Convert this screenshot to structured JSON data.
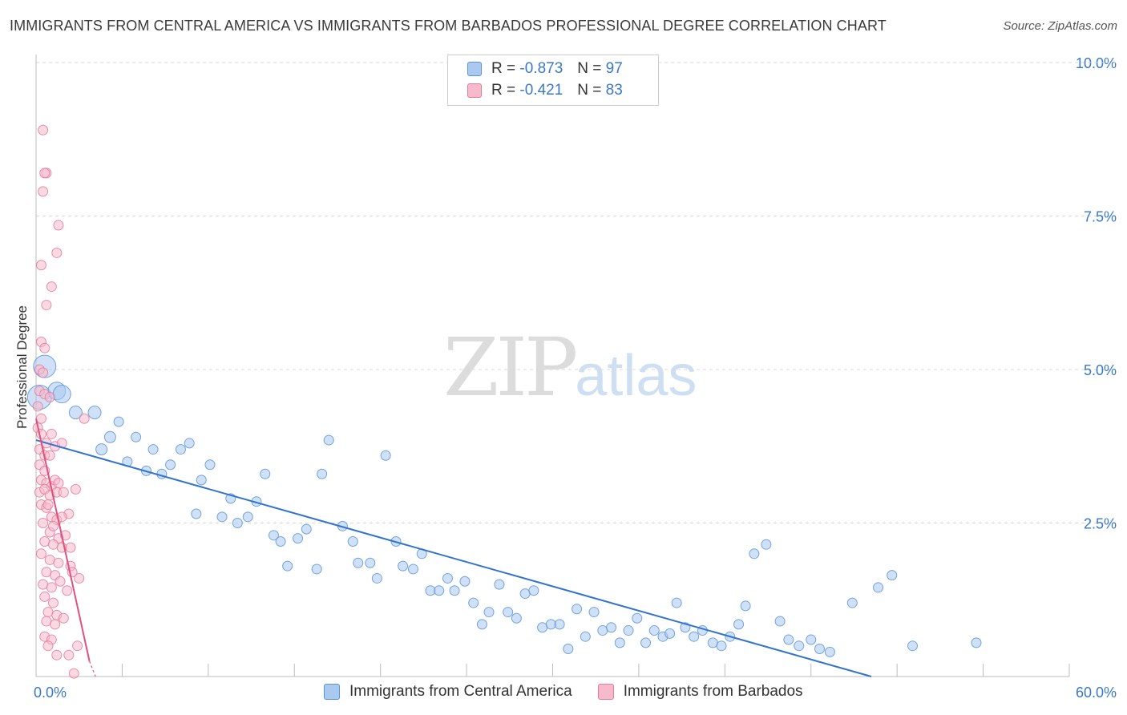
{
  "title": "IMMIGRANTS FROM CENTRAL AMERICA VS IMMIGRANTS FROM BARBADOS PROFESSIONAL DEGREE CORRELATION CHART",
  "source": "Source: ZipAtlas.com",
  "watermark": {
    "zip": "ZIP",
    "atlas": "atlas"
  },
  "colors": {
    "blue_fill": "#aac9f0",
    "blue_stroke": "#5b95d8",
    "blue_line": "#3173cf",
    "pink_fill": "#f7b9cc",
    "pink_stroke": "#e47a9c",
    "pink_line": "#e0507e",
    "tick_text": "#3a78c9",
    "grid": "#d9d9d9"
  },
  "legend": {
    "rows": [
      {
        "r_label": "R =",
        "r_value": "-0.873",
        "n_label": "N =",
        "n_value": "97"
      },
      {
        "r_label": "R =",
        "r_value": "-0.421",
        "n_label": "N =",
        "n_value": "83"
      }
    ]
  },
  "bottom_legend": [
    "Immigrants from Central America",
    "Immigrants from Barbados"
  ],
  "chart_data": {
    "type": "scatter",
    "title": "IMMIGRANTS FROM CENTRAL AMERICA VS IMMIGRANTS FROM BARBADOS PROFESSIONAL DEGREE CORRELATION CHART",
    "xlabel": "",
    "ylabel": "Professional Degree",
    "xlim": [
      0,
      60
    ],
    "ylim": [
      0,
      10
    ],
    "x_tick_labels": {
      "min": "0.0%",
      "max": "60.0%"
    },
    "y_ticks": [
      2.5,
      5.0,
      7.5,
      10.0
    ],
    "y_tick_labels": [
      "2.5%",
      "5.0%",
      "7.5%",
      "10.0%"
    ],
    "grid": true,
    "legend_position": "top-center",
    "series": [
      {
        "name": "Immigrants from Central America",
        "r": -0.873,
        "n": 97,
        "trend": {
          "x0": 0,
          "y0": 3.85,
          "x1": 48.5,
          "y1": 0.0
        },
        "points": [
          [
            0.2,
            4.55,
            1.5
          ],
          [
            0.5,
            5.05,
            1.4
          ],
          [
            1.2,
            4.65,
            1.1
          ],
          [
            1.5,
            4.6,
            1.1
          ],
          [
            2.3,
            4.3,
            0.8
          ],
          [
            3.4,
            4.3,
            0.8
          ],
          [
            3.8,
            3.7,
            0.7
          ],
          [
            4.3,
            3.9,
            0.7
          ],
          [
            4.8,
            4.15,
            0.6
          ],
          [
            5.3,
            3.5,
            0.6
          ],
          [
            5.8,
            3.9,
            0.6
          ],
          [
            6.4,
            3.35,
            0.6
          ],
          [
            6.8,
            3.7,
            0.6
          ],
          [
            7.3,
            3.3,
            0.6
          ],
          [
            7.8,
            3.45,
            0.6
          ],
          [
            8.4,
            3.7,
            0.6
          ],
          [
            8.9,
            3.8,
            0.6
          ],
          [
            9.6,
            3.2,
            0.6
          ],
          [
            10.1,
            3.45,
            0.6
          ],
          [
            9.3,
            2.65,
            0.6
          ],
          [
            10.8,
            2.6,
            0.6
          ],
          [
            11.3,
            2.9,
            0.6
          ],
          [
            11.7,
            2.5,
            0.6
          ],
          [
            12.3,
            2.6,
            0.6
          ],
          [
            12.8,
            2.85,
            0.6
          ],
          [
            13.3,
            3.3,
            0.6
          ],
          [
            13.8,
            2.3,
            0.6
          ],
          [
            14.2,
            2.2,
            0.6
          ],
          [
            14.6,
            1.8,
            0.6
          ],
          [
            15.2,
            2.25,
            0.6
          ],
          [
            15.7,
            2.4,
            0.6
          ],
          [
            16.3,
            1.75,
            0.6
          ],
          [
            16.6,
            3.3,
            0.6
          ],
          [
            17.0,
            3.85,
            0.6
          ],
          [
            17.8,
            2.45,
            0.6
          ],
          [
            18.4,
            2.2,
            0.6
          ],
          [
            18.7,
            1.85,
            0.6
          ],
          [
            19.4,
            1.85,
            0.6
          ],
          [
            19.8,
            1.6,
            0.6
          ],
          [
            20.3,
            3.6,
            0.6
          ],
          [
            20.9,
            2.2,
            0.6
          ],
          [
            21.3,
            1.8,
            0.6
          ],
          [
            21.9,
            1.75,
            0.6
          ],
          [
            22.4,
            2.0,
            0.6
          ],
          [
            22.9,
            1.4,
            0.6
          ],
          [
            23.4,
            1.4,
            0.6
          ],
          [
            23.9,
            1.6,
            0.6
          ],
          [
            24.3,
            1.4,
            0.6
          ],
          [
            24.9,
            1.55,
            0.6
          ],
          [
            25.4,
            1.2,
            0.6
          ],
          [
            25.9,
            0.85,
            0.6
          ],
          [
            26.3,
            1.05,
            0.6
          ],
          [
            26.9,
            1.5,
            0.6
          ],
          [
            27.4,
            1.05,
            0.6
          ],
          [
            27.9,
            0.95,
            0.6
          ],
          [
            28.4,
            1.35,
            0.6
          ],
          [
            28.9,
            1.4,
            0.6
          ],
          [
            29.4,
            0.8,
            0.6
          ],
          [
            29.9,
            0.85,
            0.6
          ],
          [
            30.4,
            0.85,
            0.6
          ],
          [
            30.9,
            0.45,
            0.6
          ],
          [
            31.4,
            1.1,
            0.6
          ],
          [
            31.9,
            0.65,
            0.6
          ],
          [
            32.4,
            1.05,
            0.6
          ],
          [
            32.9,
            0.75,
            0.6
          ],
          [
            33.4,
            0.8,
            0.6
          ],
          [
            33.9,
            0.55,
            0.6
          ],
          [
            34.4,
            0.75,
            0.6
          ],
          [
            34.9,
            0.95,
            0.6
          ],
          [
            35.4,
            0.55,
            0.6
          ],
          [
            35.9,
            0.75,
            0.6
          ],
          [
            36.4,
            0.65,
            0.6
          ],
          [
            36.8,
            0.7,
            0.6
          ],
          [
            37.2,
            1.2,
            0.6
          ],
          [
            37.7,
            0.8,
            0.6
          ],
          [
            38.2,
            0.65,
            0.6
          ],
          [
            38.7,
            0.75,
            0.6
          ],
          [
            39.3,
            0.55,
            0.6
          ],
          [
            39.8,
            0.5,
            0.6
          ],
          [
            40.3,
            0.65,
            0.6
          ],
          [
            40.8,
            0.85,
            0.6
          ],
          [
            41.2,
            1.15,
            0.6
          ],
          [
            41.7,
            2.0,
            0.6
          ],
          [
            42.4,
            2.15,
            0.6
          ],
          [
            43.2,
            0.9,
            0.6
          ],
          [
            43.7,
            0.6,
            0.6
          ],
          [
            44.3,
            0.5,
            0.6
          ],
          [
            45.0,
            0.6,
            0.6
          ],
          [
            45.5,
            0.45,
            0.6
          ],
          [
            46.1,
            0.4,
            0.6
          ],
          [
            47.4,
            1.2,
            0.6
          ],
          [
            48.9,
            1.45,
            0.6
          ],
          [
            49.7,
            1.65,
            0.6
          ],
          [
            50.9,
            0.5,
            0.6
          ],
          [
            54.6,
            0.55,
            0.6
          ]
        ]
      },
      {
        "name": "Immigrants from Barbados",
        "r": -0.421,
        "n": 83,
        "trend": {
          "x0": 0,
          "y0": 4.2,
          "x1": 3.1,
          "y1": 0.25
        },
        "points": [
          [
            0.4,
            8.9,
            0.6
          ],
          [
            0.6,
            8.2,
            0.6
          ],
          [
            0.5,
            8.2,
            0.6
          ],
          [
            0.4,
            7.9,
            0.6
          ],
          [
            1.3,
            7.35,
            0.6
          ],
          [
            1.2,
            6.9,
            0.6
          ],
          [
            0.3,
            6.7,
            0.6
          ],
          [
            0.9,
            6.35,
            0.6
          ],
          [
            0.6,
            6.05,
            0.6
          ],
          [
            0.3,
            5.45,
            0.6
          ],
          [
            0.5,
            5.35,
            0.6
          ],
          [
            0.2,
            5.0,
            0.6
          ],
          [
            0.4,
            4.95,
            0.6
          ],
          [
            0.2,
            4.65,
            0.6
          ],
          [
            0.5,
            4.6,
            0.6
          ],
          [
            0.8,
            4.55,
            0.6
          ],
          [
            0.1,
            4.4,
            0.6
          ],
          [
            0.3,
            4.2,
            0.6
          ],
          [
            0.1,
            4.05,
            0.6
          ],
          [
            0.3,
            3.95,
            0.6
          ],
          [
            0.6,
            3.8,
            0.6
          ],
          [
            0.9,
            3.95,
            0.6
          ],
          [
            0.2,
            3.7,
            0.6
          ],
          [
            0.5,
            3.6,
            0.6
          ],
          [
            0.8,
            3.6,
            0.6
          ],
          [
            1.1,
            3.75,
            0.6
          ],
          [
            1.5,
            3.8,
            0.6
          ],
          [
            0.2,
            3.45,
            0.6
          ],
          [
            0.5,
            3.35,
            0.6
          ],
          [
            0.3,
            3.2,
            0.6
          ],
          [
            0.6,
            3.15,
            0.6
          ],
          [
            0.9,
            3.1,
            0.6
          ],
          [
            1.1,
            3.2,
            0.6
          ],
          [
            1.3,
            3.15,
            0.6
          ],
          [
            0.2,
            3.0,
            0.6
          ],
          [
            0.5,
            3.05,
            0.6
          ],
          [
            0.8,
            2.95,
            0.6
          ],
          [
            1.2,
            3.0,
            0.6
          ],
          [
            1.6,
            3.0,
            0.6
          ],
          [
            0.3,
            2.8,
            0.6
          ],
          [
            0.6,
            2.75,
            0.6
          ],
          [
            0.9,
            2.6,
            0.6
          ],
          [
            1.2,
            2.55,
            0.6
          ],
          [
            0.4,
            2.5,
            0.6
          ],
          [
            0.8,
            2.35,
            0.6
          ],
          [
            1.3,
            2.25,
            0.6
          ],
          [
            0.5,
            2.2,
            0.6
          ],
          [
            1.0,
            2.15,
            0.6
          ],
          [
            1.5,
            2.1,
            0.6
          ],
          [
            0.3,
            2.0,
            0.6
          ],
          [
            0.8,
            1.9,
            0.6
          ],
          [
            1.3,
            1.85,
            0.6
          ],
          [
            0.6,
            1.7,
            0.6
          ],
          [
            1.1,
            1.65,
            0.6
          ],
          [
            0.4,
            1.5,
            0.6
          ],
          [
            0.9,
            1.45,
            0.6
          ],
          [
            1.4,
            1.55,
            0.6
          ],
          [
            0.5,
            1.3,
            0.6
          ],
          [
            1.0,
            1.2,
            0.6
          ],
          [
            0.7,
            1.05,
            0.6
          ],
          [
            1.2,
            1.0,
            0.6
          ],
          [
            0.6,
            0.9,
            0.6
          ],
          [
            1.1,
            0.85,
            0.6
          ],
          [
            0.5,
            0.65,
            0.6
          ],
          [
            0.9,
            0.6,
            0.6
          ],
          [
            0.7,
            0.5,
            0.6
          ],
          [
            1.2,
            0.35,
            0.6
          ],
          [
            2.0,
            1.8,
            0.6
          ],
          [
            1.9,
            0.35,
            0.6
          ],
          [
            2.4,
            0.5,
            0.6
          ],
          [
            2.2,
            0.05,
            0.6
          ],
          [
            2.8,
            4.2,
            0.6
          ],
          [
            2.1,
            1.7,
            0.6
          ],
          [
            1.7,
            2.3,
            0.6
          ],
          [
            1.9,
            2.65,
            0.6
          ],
          [
            2.3,
            3.05,
            0.6
          ],
          [
            1.5,
            2.6,
            0.6
          ],
          [
            1.0,
            2.45,
            0.6
          ],
          [
            0.7,
            2.8,
            0.6
          ],
          [
            2.0,
            2.1,
            0.6
          ],
          [
            1.8,
            1.4,
            0.6
          ],
          [
            2.5,
            1.6,
            0.6
          ],
          [
            1.6,
            0.95,
            0.6
          ]
        ]
      }
    ]
  }
}
